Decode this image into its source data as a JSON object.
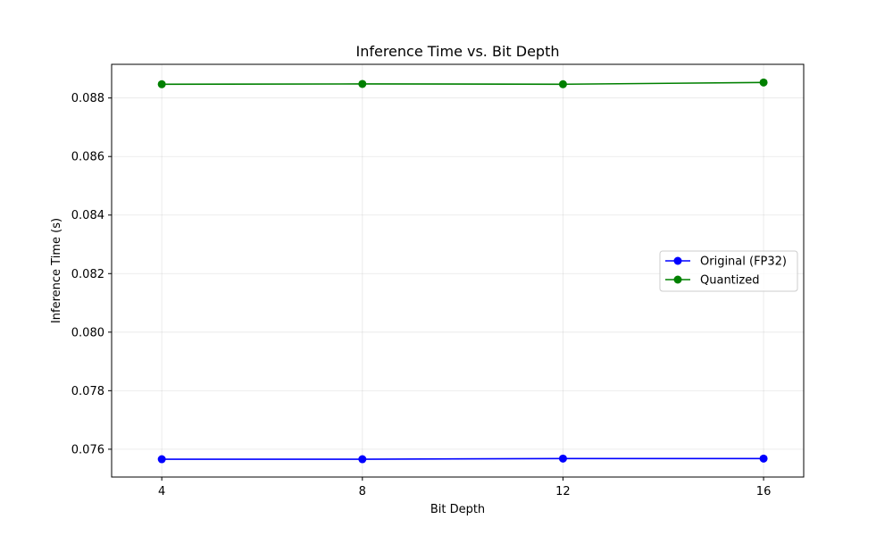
{
  "chart_data": {
    "type": "line",
    "title": "Inference Time vs. Bit Depth",
    "xlabel": "Bit Depth",
    "ylabel": "Inference Time (s)",
    "x": [
      4,
      8,
      12,
      16
    ],
    "x_ticks": [
      "4",
      "8",
      "12",
      "16"
    ],
    "xlim": [
      3.0,
      16.8
    ],
    "ylim": [
      0.07505,
      0.08915
    ],
    "y_ticks": [
      0.076,
      0.078,
      0.08,
      0.082,
      0.084,
      0.086,
      0.088
    ],
    "y_tick_labels": [
      "0.076",
      "0.078",
      "0.080",
      "0.082",
      "0.084",
      "0.086",
      "0.088"
    ],
    "grid": true,
    "legend_position": "center-right",
    "series": [
      {
        "name": "Original (FP32)",
        "color": "#0000ff",
        "marker": "circle",
        "values": [
          0.07566,
          0.07566,
          0.07568,
          0.07568
        ]
      },
      {
        "name": "Quantized",
        "color": "#008000",
        "marker": "circle",
        "values": [
          0.08847,
          0.08848,
          0.08847,
          0.08853
        ]
      }
    ]
  }
}
